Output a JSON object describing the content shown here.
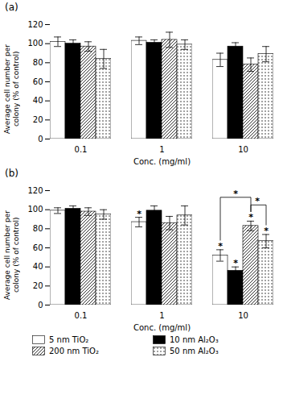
{
  "chart_data": [
    {
      "type": "bar",
      "title": "(a)",
      "xlabel": "Conc. (mg/ml)",
      "ylabel": "Average cell number per\ncolony (% of control)",
      "categories": [
        "0.1",
        "1",
        "10"
      ],
      "series": [
        {
          "name": "5 nm TiO₂",
          "color": "#ffffff",
          "values": [
            102,
            103,
            83
          ],
          "errors": [
            5,
            4,
            7
          ]
        },
        {
          "name": "10 nm Al₂O₃",
          "color": "#000000",
          "values": [
            100,
            101,
            97
          ],
          "errors": [
            4,
            3,
            4
          ]
        },
        {
          "name": "200 nm TiO₂",
          "color": "#ffffff",
          "values": [
            97,
            104,
            78
          ],
          "errors": [
            5,
            8,
            7
          ]
        },
        {
          "name": "50 nm Al₂O₃",
          "color": "#ffffff",
          "values": [
            84,
            99,
            89
          ],
          "errors": [
            10,
            5,
            8
          ]
        }
      ],
      "ylim": [
        0,
        120
      ],
      "yticks": [
        0,
        20,
        40,
        60,
        80,
        100,
        120
      ]
    },
    {
      "type": "bar",
      "title": "(b)",
      "xlabel": "Conc. (mg/ml)",
      "ylabel": "Average cell number per\ncolony (% of control)",
      "categories": [
        "0.1",
        "1",
        "10"
      ],
      "series": [
        {
          "name": "5 nm TiO₂",
          "color": "#ffffff",
          "values": [
            99,
            87,
            52
          ],
          "errors": [
            3,
            5,
            6
          ]
        },
        {
          "name": "10 nm Al₂O₃",
          "color": "#000000",
          "values": [
            101,
            99,
            36
          ],
          "errors": [
            3,
            5,
            4
          ]
        },
        {
          "name": "200 nm TiO₂",
          "color": "#ffffff",
          "values": [
            98,
            86,
            83
          ],
          "errors": [
            4,
            7,
            5
          ]
        },
        {
          "name": "50 nm Al₂O₃",
          "color": "#ffffff",
          "values": [
            95,
            94,
            67
          ],
          "errors": [
            5,
            10,
            7
          ]
        }
      ],
      "annotations": [
        {
          "category": "1",
          "series": "5 nm TiO₂",
          "text": "*"
        },
        {
          "category": "10",
          "series": "5 nm TiO₂",
          "text": "*"
        },
        {
          "category": "10",
          "series": "10 nm Al₂O₃",
          "text": "*"
        },
        {
          "category": "10",
          "series": "200 nm TiO₂",
          "text": "*"
        },
        {
          "category": "10",
          "series": "50 nm Al₂O₃",
          "text": "*"
        }
      ],
      "brackets": [
        {
          "category": "10",
          "from": "5 nm TiO₂",
          "to": "200 nm TiO₂",
          "y": 113,
          "text": "*"
        },
        {
          "category": "10",
          "from": "200 nm TiO₂",
          "to": "50 nm Al₂O₃",
          "y": 105,
          "text": "*"
        }
      ],
      "ylim": [
        0,
        120
      ],
      "yticks": [
        0,
        20,
        40,
        60,
        80,
        100,
        120
      ],
      "legend": "bottom"
    }
  ]
}
